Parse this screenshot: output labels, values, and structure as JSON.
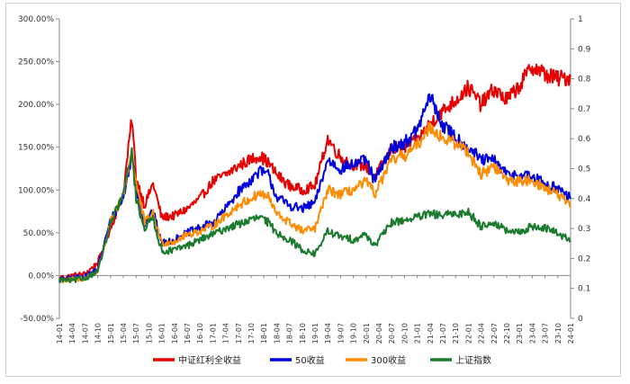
{
  "chart_data": {
    "type": "line",
    "title": "",
    "left_axis": {
      "ticks": [
        "300.00%",
        "250.00%",
        "200.00%",
        "150.00%",
        "100.00%",
        "50.00%",
        "0.00%",
        "-50.00%"
      ],
      "min": -50,
      "max": 300,
      "unit": "%"
    },
    "right_axis": {
      "ticks": [
        "1",
        "0.9",
        "0.8",
        "0.7",
        "0.6",
        "0.5",
        "0.4",
        "0.3",
        "0.2",
        "0.1",
        "0"
      ],
      "min": 0,
      "max": 1
    },
    "x_ticks": [
      "14-01",
      "14-04",
      "14-07",
      "14-10",
      "15-01",
      "15-04",
      "15-07",
      "15-10",
      "16-01",
      "16-04",
      "16-07",
      "16-10",
      "17-01",
      "17-04",
      "17-07",
      "17-10",
      "18-01",
      "18-04",
      "18-07",
      "18-10",
      "19-01",
      "19-04",
      "19-07",
      "19-10",
      "20-01",
      "20-04",
      "20-07",
      "20-10",
      "21-01",
      "21-04",
      "21-07",
      "21-10",
      "22-01",
      "22-04",
      "22-07",
      "22-10",
      "23-01",
      "23-04",
      "23-07",
      "23-10",
      "24-01"
    ],
    "legend_position": "bottom",
    "grid": false,
    "series": [
      {
        "name": "中证红利全收益",
        "color": "#e60000",
        "x": [
          "14-01",
          "14-04",
          "14-07",
          "14-10",
          "15-01",
          "15-04",
          "15-06",
          "15-07",
          "15-09",
          "15-11",
          "16-01",
          "16-04",
          "16-07",
          "16-10",
          "17-01",
          "17-04",
          "17-07",
          "17-10",
          "17-12",
          "18-02",
          "18-04",
          "18-07",
          "18-10",
          "19-01",
          "19-04",
          "19-07",
          "19-10",
          "20-01",
          "20-03",
          "20-07",
          "20-10",
          "21-01",
          "21-04",
          "21-07",
          "21-10",
          "22-01",
          "22-04",
          "22-07",
          "22-10",
          "23-01",
          "23-04",
          "23-07",
          "23-10",
          "24-01"
        ],
        "values": [
          -3,
          0,
          2,
          15,
          55,
          95,
          185,
          115,
          82,
          108,
          68,
          70,
          78,
          90,
          110,
          118,
          128,
          136,
          140,
          132,
          118,
          105,
          100,
          105,
          160,
          138,
          130,
          128,
          115,
          148,
          150,
          158,
          178,
          192,
          205,
          220,
          200,
          218,
          205,
          222,
          245,
          235,
          230,
          232
        ]
      },
      {
        "name": "50收益",
        "color": "#0000dd",
        "x": [
          "14-01",
          "14-04",
          "14-07",
          "14-10",
          "15-01",
          "15-04",
          "15-06",
          "15-07",
          "15-09",
          "15-11",
          "16-01",
          "16-04",
          "16-07",
          "16-10",
          "17-01",
          "17-04",
          "17-07",
          "17-10",
          "17-12",
          "18-02",
          "18-04",
          "18-07",
          "18-10",
          "19-01",
          "19-04",
          "19-07",
          "19-10",
          "20-01",
          "20-03",
          "20-07",
          "20-10",
          "21-01",
          "21-04",
          "21-07",
          "21-10",
          "22-01",
          "22-04",
          "22-07",
          "22-10",
          "23-01",
          "23-04",
          "23-07",
          "23-10",
          "24-01"
        ],
        "values": [
          -5,
          -3,
          -1,
          8,
          65,
          90,
          140,
          105,
          60,
          75,
          38,
          42,
          50,
          56,
          62,
          78,
          98,
          112,
          122,
          118,
          92,
          82,
          78,
          85,
          135,
          125,
          130,
          135,
          110,
          150,
          155,
          170,
          210,
          175,
          162,
          150,
          135,
          135,
          118,
          118,
          115,
          108,
          102,
          90
        ]
      },
      {
        "name": "300收益",
        "color": "#ff8c00",
        "x": [
          "14-01",
          "14-04",
          "14-07",
          "14-10",
          "15-01",
          "15-04",
          "15-06",
          "15-07",
          "15-09",
          "15-11",
          "16-01",
          "16-04",
          "16-07",
          "16-10",
          "17-01",
          "17-04",
          "17-07",
          "17-10",
          "17-12",
          "18-02",
          "18-04",
          "18-07",
          "18-10",
          "19-01",
          "19-04",
          "19-07",
          "19-10",
          "20-01",
          "20-03",
          "20-07",
          "20-10",
          "21-01",
          "21-04",
          "21-07",
          "21-10",
          "22-01",
          "22-04",
          "22-07",
          "22-10",
          "23-01",
          "23-04",
          "23-07",
          "23-10",
          "24-01"
        ],
        "values": [
          -6,
          -5,
          -3,
          5,
          62,
          95,
          145,
          108,
          62,
          72,
          38,
          40,
          48,
          52,
          58,
          70,
          82,
          90,
          96,
          92,
          72,
          62,
          52,
          55,
          100,
          95,
          100,
          110,
          95,
          135,
          140,
          152,
          175,
          160,
          155,
          145,
          118,
          128,
          112,
          110,
          112,
          102,
          95,
          80
        ]
      },
      {
        "name": "上证指数",
        "color": "#1a7a2e",
        "x": [
          "14-01",
          "14-04",
          "14-07",
          "14-10",
          "15-01",
          "15-04",
          "15-06",
          "15-07",
          "15-09",
          "15-11",
          "16-01",
          "16-04",
          "16-07",
          "16-10",
          "17-01",
          "17-04",
          "17-07",
          "17-10",
          "17-12",
          "18-02",
          "18-04",
          "18-07",
          "18-10",
          "19-01",
          "19-04",
          "19-07",
          "19-10",
          "20-01",
          "20-03",
          "20-07",
          "20-10",
          "21-01",
          "21-04",
          "21-07",
          "21-10",
          "22-01",
          "22-04",
          "22-07",
          "22-10",
          "23-01",
          "23-04",
          "23-07",
          "23-10",
          "24-01"
        ],
        "values": [
          -5,
          -6,
          -3,
          5,
          60,
          95,
          145,
          90,
          55,
          68,
          28,
          30,
          35,
          42,
          48,
          55,
          60,
          65,
          68,
          62,
          50,
          42,
          30,
          25,
          52,
          45,
          42,
          48,
          35,
          62,
          65,
          68,
          72,
          70,
          72,
          74,
          58,
          62,
          52,
          50,
          58,
          55,
          50,
          40
        ]
      }
    ]
  }
}
